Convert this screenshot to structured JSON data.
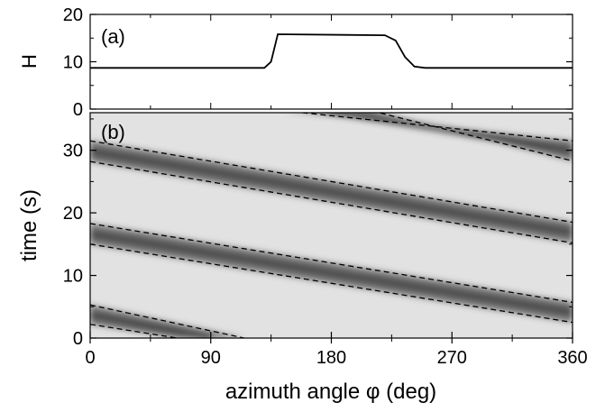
{
  "chart_data": [
    {
      "panel_label": "(a)",
      "type": "line",
      "ylabel": "H",
      "xlim": [
        0,
        360
      ],
      "ylim": [
        0,
        20
      ],
      "yticks": [
        "0",
        "10",
        "20"
      ],
      "series": [
        {
          "x": [
            0,
            130,
            135,
            140,
            220,
            228,
            235,
            242,
            250,
            360
          ],
          "y": [
            8.7,
            8.7,
            10.0,
            15.8,
            15.6,
            14.5,
            11.0,
            9.0,
            8.7,
            8.7
          ]
        }
      ]
    },
    {
      "panel_label": "(b)",
      "type": "heatmap",
      "xlabel": "azimuth angle φ (deg)",
      "ylabel": "time (s)",
      "xlim": [
        0,
        360
      ],
      "ylim": [
        0,
        36
      ],
      "xticks": [
        "0",
        "90",
        "180",
        "270",
        "360"
      ],
      "yticks": [
        "0",
        "10",
        "20",
        "30"
      ],
      "dashed_bands": [
        {
          "upper": [
            [
              0,
              5.3
            ],
            [
              115,
              0
            ]
          ],
          "lower": [
            [
              0,
              2.2
            ],
            [
              65,
              0
            ]
          ]
        },
        {
          "upper": [
            [
              0,
              18.3
            ],
            [
              360,
              5.7
            ]
          ],
          "lower": [
            [
              0,
              15.0
            ],
            [
              360,
              2.5
            ]
          ]
        },
        {
          "upper": [
            [
              0,
              31.5
            ],
            [
              360,
              18.5
            ]
          ],
          "lower": [
            [
              0,
              28.2
            ],
            [
              360,
              15.2
            ]
          ]
        },
        {
          "upper": [
            [
              145,
              36.3
            ],
            [
              360,
              31.5
            ]
          ],
          "lower": [
            [
              210,
              36.3
            ],
            [
              360,
              28.3
            ]
          ]
        }
      ]
    }
  ]
}
